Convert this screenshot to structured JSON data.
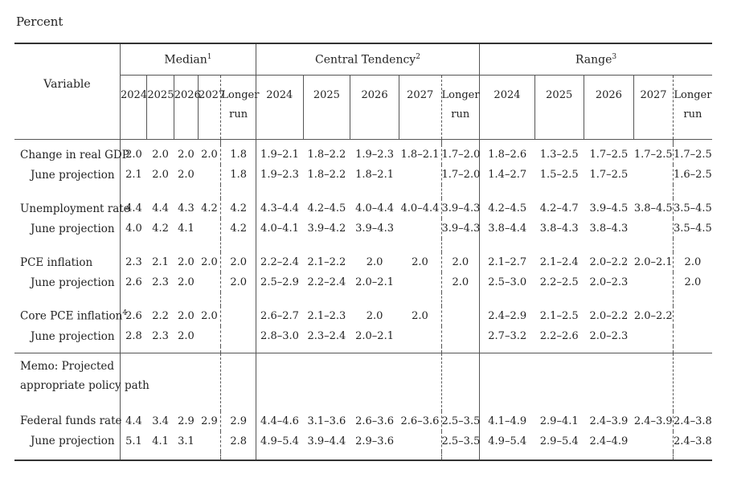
{
  "unit_label": "Percent",
  "header": {
    "variable": "Variable",
    "groups": [
      {
        "label": "Median",
        "note": "1"
      },
      {
        "label": "Central Tendency",
        "note": "2"
      },
      {
        "label": "Range",
        "note": "3"
      }
    ],
    "years": [
      "2024",
      "2025",
      "2026",
      "2027"
    ],
    "longer_run": [
      "Longer",
      "run"
    ]
  },
  "rows": [
    {
      "label": "Change in real GDP",
      "note": "",
      "sub": false,
      "median": [
        "2.0",
        "2.0",
        "2.0",
        "2.0",
        "1.8"
      ],
      "tendency": [
        "1.9–2.1",
        "1.8–2.2",
        "1.9–2.3",
        "1.8–2.1",
        "1.7–2.0"
      ],
      "range": [
        "1.8–2.6",
        "1.3–2.5",
        "1.7–2.5",
        "1.7–2.5",
        "1.7–2.5"
      ]
    },
    {
      "label": "June projection",
      "note": "",
      "sub": true,
      "median": [
        "2.1",
        "2.0",
        "2.0",
        "",
        "1.8"
      ],
      "tendency": [
        "1.9–2.3",
        "1.8–2.2",
        "1.8–2.1",
        "",
        "1.7–2.0"
      ],
      "range": [
        "1.4–2.7",
        "1.5–2.5",
        "1.7–2.5",
        "",
        "1.6–2.5"
      ]
    },
    {
      "label": "Unemployment rate",
      "note": "",
      "sub": false,
      "median": [
        "4.4",
        "4.4",
        "4.3",
        "4.2",
        "4.2"
      ],
      "tendency": [
        "4.3–4.4",
        "4.2–4.5",
        "4.0–4.4",
        "4.0–4.4",
        "3.9–4.3"
      ],
      "range": [
        "4.2–4.5",
        "4.2–4.7",
        "3.9–4.5",
        "3.8–4.5",
        "3.5–4.5"
      ]
    },
    {
      "label": "June projection",
      "note": "",
      "sub": true,
      "median": [
        "4.0",
        "4.2",
        "4.1",
        "",
        "4.2"
      ],
      "tendency": [
        "4.0–4.1",
        "3.9–4.2",
        "3.9–4.3",
        "",
        "3.9–4.3"
      ],
      "range": [
        "3.8–4.4",
        "3.8–4.3",
        "3.8–4.3",
        "",
        "3.5–4.5"
      ]
    },
    {
      "label": "PCE inflation",
      "note": "",
      "sub": false,
      "median": [
        "2.3",
        "2.1",
        "2.0",
        "2.0",
        "2.0"
      ],
      "tendency": [
        "2.2–2.4",
        "2.1–2.2",
        "2.0",
        "2.0",
        "2.0"
      ],
      "range": [
        "2.1–2.7",
        "2.1–2.4",
        "2.0–2.2",
        "2.0–2.1",
        "2.0"
      ]
    },
    {
      "label": "June projection",
      "note": "",
      "sub": true,
      "median": [
        "2.6",
        "2.3",
        "2.0",
        "",
        "2.0"
      ],
      "tendency": [
        "2.5–2.9",
        "2.2–2.4",
        "2.0–2.1",
        "",
        "2.0"
      ],
      "range": [
        "2.5–3.0",
        "2.2–2.5",
        "2.0–2.3",
        "",
        "2.0"
      ]
    },
    {
      "label": "Core PCE inflation",
      "note": "4",
      "sub": false,
      "median": [
        "2.6",
        "2.2",
        "2.0",
        "2.0",
        ""
      ],
      "tendency": [
        "2.6–2.7",
        "2.1–2.3",
        "2.0",
        "2.0",
        ""
      ],
      "range": [
        "2.4–2.9",
        "2.1–2.5",
        "2.0–2.2",
        "2.0–2.2",
        ""
      ]
    },
    {
      "label": "June projection",
      "note": "",
      "sub": true,
      "median": [
        "2.8",
        "2.3",
        "2.0",
        "",
        ""
      ],
      "tendency": [
        "2.8–3.0",
        "2.3–2.4",
        "2.0–2.1",
        "",
        ""
      ],
      "range": [
        "2.7–3.2",
        "2.2–2.6",
        "2.0–2.3",
        "",
        ""
      ]
    }
  ],
  "memo": {
    "lines": [
      "Memo: Projected",
      "appropriate policy path"
    ]
  },
  "memo_rows": [
    {
      "label": "Federal funds rate",
      "note": "",
      "sub": false,
      "median": [
        "4.4",
        "3.4",
        "2.9",
        "2.9",
        "2.9"
      ],
      "tendency": [
        "4.4–4.6",
        "3.1–3.6",
        "2.6–3.6",
        "2.6–3.6",
        "2.5–3.5"
      ],
      "range": [
        "4.1–4.9",
        "2.9–4.1",
        "2.4–3.9",
        "2.4–3.9",
        "2.4–3.8"
      ]
    },
    {
      "label": "June projection",
      "note": "",
      "sub": true,
      "median": [
        "5.1",
        "4.1",
        "3.1",
        "",
        "2.8"
      ],
      "tendency": [
        "4.9–5.4",
        "3.9–4.4",
        "2.9–3.6",
        "",
        "2.5–3.5"
      ],
      "range": [
        "4.9–5.4",
        "2.9–5.4",
        "2.4–4.9",
        "",
        "2.4–3.8"
      ]
    }
  ]
}
